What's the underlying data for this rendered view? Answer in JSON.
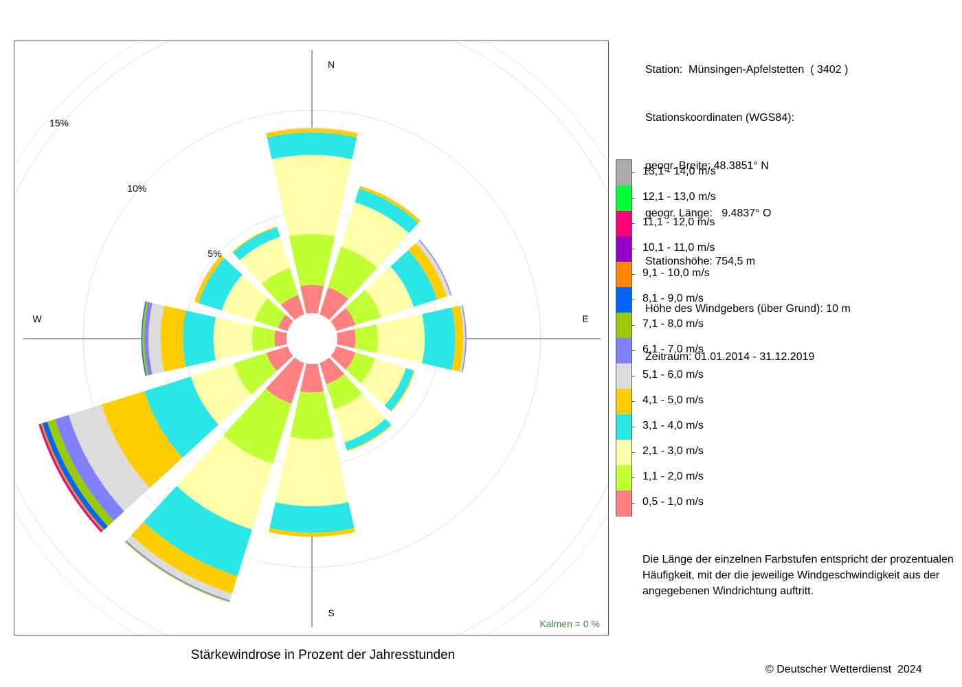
{
  "chart_data": {
    "type": "windrose",
    "title": "Stärkewindrose in Prozent der Jahresstunden",
    "directions": [
      "N",
      "NNE",
      "ENE",
      "E",
      "ESE",
      "SSE",
      "S",
      "SSW",
      "WSW",
      "W",
      "WNW",
      "NNW"
    ],
    "direction_degrees": [
      0,
      30,
      60,
      90,
      120,
      150,
      180,
      210,
      240,
      270,
      300,
      330
    ],
    "compass_labels": [
      "N",
      "E",
      "S",
      "W"
    ],
    "ring_labels": [
      "5%",
      "10%",
      "15%"
    ],
    "ring_values_percent": [
      5,
      10,
      15
    ],
    "calm_text": "Kalmen  =  0 %",
    "speed_classes": [
      {
        "label": "0,5 - 1,0 m/s",
        "color": "#FF8080"
      },
      {
        "label": "1,1 - 2,0 m/s",
        "color": "#BFFF33"
      },
      {
        "label": "2,1 - 3,0 m/s",
        "color": "#FFFFAA"
      },
      {
        "label": "3,1 - 4,0 m/s",
        "color": "#2BE6E6"
      },
      {
        "label": "4,1 - 5,0 m/s",
        "color": "#FFCC00"
      },
      {
        "label": "5,1 - 6,0 m/s",
        "color": "#DCDCDC"
      },
      {
        "label": "6,1 - 7,0 m/s",
        "color": "#8080FF"
      },
      {
        "label": "7,1 - 8,0 m/s",
        "color": "#99CC00"
      },
      {
        "label": "8,1 - 9,0 m/s",
        "color": "#0066FF"
      },
      {
        "label": "9,1 - 10,0 m/s",
        "color": "#FF8800"
      },
      {
        "label": "10,1 - 11,0 m/s",
        "color": "#9900CC"
      },
      {
        "label": "11,1 - 12,0 m/s",
        "color": "#FF0077"
      },
      {
        "label": "12,1 - 13,0 m/s",
        "color": "#00FF33"
      },
      {
        "label": "13,1 - 14,0 m/s",
        "color": "#AAAAAA"
      }
    ],
    "series": [
      {
        "direction": "N",
        "values": [
          1.4,
          2.5,
          3.9,
          1.1,
          0.2,
          0.05
        ]
      },
      {
        "direction": "NNE",
        "values": [
          1.4,
          2.1,
          2.3,
          0.7,
          0.15
        ]
      },
      {
        "direction": "ENE",
        "values": [
          1.0,
          1.3,
          1.7,
          1.2,
          0.5,
          0.2,
          0.05
        ]
      },
      {
        "direction": "E",
        "values": [
          0.9,
          1.1,
          2.3,
          1.5,
          0.4,
          0.1,
          0.05
        ]
      },
      {
        "direction": "ESE",
        "values": [
          1.0,
          1.0,
          1.6,
          0.4,
          0.05
        ]
      },
      {
        "direction": "SSE",
        "values": [
          1.1,
          1.3,
          1.7,
          0.4,
          0.05
        ]
      },
      {
        "direction": "S",
        "values": [
          1.4,
          2.3,
          3.3,
          1.3,
          0.2
        ]
      },
      {
        "direction": "SSW",
        "values": [
          2.1,
          3.1,
          3.4,
          2.4,
          0.9,
          0.35,
          0.05,
          0.05
        ]
      },
      {
        "direction": "WSW",
        "values": [
          1.1,
          1.7,
          2.2,
          2.4,
          2.2,
          1.7,
          0.7,
          0.4,
          0.25,
          0.1,
          0.05,
          0.05
        ]
      },
      {
        "direction": "W",
        "values": [
          0.6,
          1.1,
          1.9,
          1.5,
          1.1,
          0.6,
          0.2,
          0.1,
          0.05
        ]
      },
      {
        "direction": "WNW",
        "values": [
          0.5,
          1.2,
          1.7,
          1.2,
          0.2,
          0.05
        ]
      },
      {
        "direction": "NNW",
        "values": [
          1.0,
          1.4,
          1.6,
          0.5,
          0.05
        ]
      }
    ],
    "r_max_percent": 16,
    "grid": true
  },
  "station": {
    "lines": [
      "Station:  Münsingen-Apfelstetten  ( 3402 )",
      "Stationskoordinaten (WGS84):",
      "geogr. Breite: 48.3851° N",
      "geogr. Länge:   9.4837° O",
      "Stationshöhe: 754,5 m",
      "Höhe des Windgebers (über Grund): 10 m",
      "Zeitraum: 01.01.2014 - 31.12.2019"
    ]
  },
  "note": {
    "lines": [
      "Die Länge der einzelnen Farbstufen entspricht der prozentualen",
      "Häufigkeit, mit der die jeweilige Windgeschwindigkeit aus der",
      "angegebenen Windrichtung auftritt."
    ]
  },
  "copyright": "© Deutscher Wetterdienst  2024"
}
